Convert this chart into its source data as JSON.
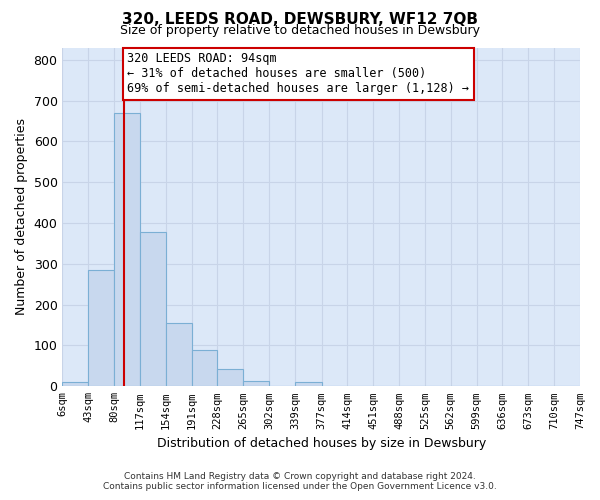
{
  "title": "320, LEEDS ROAD, DEWSBURY, WF12 7QB",
  "subtitle": "Size of property relative to detached houses in Dewsbury",
  "xlabel": "Distribution of detached houses by size in Dewsbury",
  "ylabel": "Number of detached properties",
  "bar_edges": [
    6,
    43,
    80,
    117,
    154,
    191,
    228,
    265,
    302,
    339,
    377,
    414,
    451,
    488,
    525,
    562,
    599,
    636,
    673,
    710,
    747
  ],
  "bar_heights": [
    10,
    285,
    670,
    378,
    155,
    88,
    42,
    14,
    0,
    10,
    0,
    0,
    0,
    0,
    0,
    0,
    0,
    0,
    0,
    0
  ],
  "bar_color": "#c8d8ee",
  "bar_edge_color": "#7bafd4",
  "property_line_x": 94,
  "property_line_color": "#cc0000",
  "ylim": [
    0,
    830
  ],
  "yticks": [
    0,
    100,
    200,
    300,
    400,
    500,
    600,
    700,
    800
  ],
  "annotation_text": "320 LEEDS ROAD: 94sqm\n← 31% of detached houses are smaller (500)\n69% of semi-detached houses are larger (1,128) →",
  "annotation_box_color": "#ffffff",
  "annotation_box_edge": "#cc0000",
  "footer_line1": "Contains HM Land Registry data © Crown copyright and database right 2024.",
  "footer_line2": "Contains public sector information licensed under the Open Government Licence v3.0.",
  "tick_labels": [
    "6sqm",
    "43sqm",
    "80sqm",
    "117sqm",
    "154sqm",
    "191sqm",
    "228sqm",
    "265sqm",
    "302sqm",
    "339sqm",
    "377sqm",
    "414sqm",
    "451sqm",
    "488sqm",
    "525sqm",
    "562sqm",
    "599sqm",
    "636sqm",
    "673sqm",
    "710sqm",
    "747sqm"
  ],
  "grid_color": "#c8d4e8",
  "background_color": "#ffffff",
  "axes_bg_color": "#dce8f8"
}
